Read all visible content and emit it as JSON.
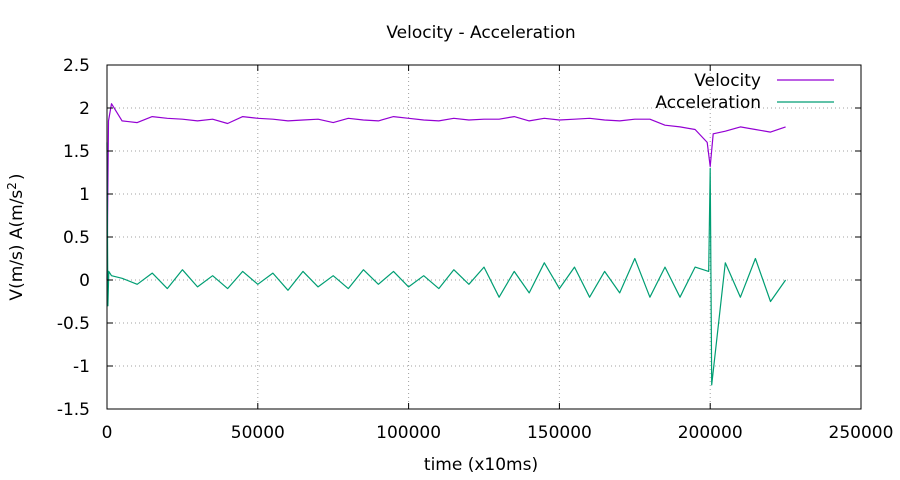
{
  "chart_data": {
    "type": "line",
    "title": "Velocity - Acceleration",
    "xlabel": "time (x10ms)",
    "ylabel_main": "V(m/s) A(m/s",
    "ylabel_sup": "2",
    "ylabel_close": ")",
    "xlim": [
      0,
      250000
    ],
    "ylim": [
      -1.5,
      2.5
    ],
    "x_ticks": [
      0,
      50000,
      100000,
      150000,
      200000,
      250000
    ],
    "x_tick_labels": [
      "0",
      "50000",
      "100000",
      "150000",
      "200000",
      "250000"
    ],
    "y_ticks": [
      -1.5,
      -1,
      -0.5,
      0,
      0.5,
      1,
      1.5,
      2,
      2.5
    ],
    "y_tick_labels": [
      "-1.5",
      "-1",
      "-0.5",
      "0",
      "0.5",
      "1",
      "1.5",
      "2",
      "2.5"
    ],
    "grid": true,
    "legend_position": "top-right",
    "series": [
      {
        "name": "Velocity",
        "color": "#9400d3",
        "x": [
          0,
          500,
          1500,
          5000,
          10000,
          15000,
          20000,
          25000,
          30000,
          35000,
          40000,
          45000,
          50000,
          55000,
          60000,
          65000,
          70000,
          75000,
          80000,
          85000,
          90000,
          95000,
          100000,
          105000,
          110000,
          115000,
          120000,
          125000,
          130000,
          135000,
          140000,
          145000,
          150000,
          155000,
          160000,
          165000,
          170000,
          175000,
          180000,
          185000,
          190000,
          195000,
          199000,
          200000,
          201000,
          205000,
          210000,
          215000,
          220000,
          225000
        ],
        "values": [
          0.0,
          1.85,
          2.05,
          1.85,
          1.83,
          1.9,
          1.88,
          1.87,
          1.85,
          1.87,
          1.82,
          1.9,
          1.88,
          1.87,
          1.85,
          1.86,
          1.87,
          1.83,
          1.88,
          1.86,
          1.85,
          1.9,
          1.88,
          1.86,
          1.85,
          1.88,
          1.86,
          1.87,
          1.87,
          1.9,
          1.85,
          1.88,
          1.86,
          1.87,
          1.88,
          1.86,
          1.85,
          1.87,
          1.87,
          1.8,
          1.78,
          1.75,
          1.6,
          1.32,
          1.7,
          1.73,
          1.78,
          1.75,
          1.72,
          1.78
        ]
      },
      {
        "name": "Acceleration",
        "color": "#009e73",
        "x": [
          0,
          300,
          600,
          1500,
          5000,
          10000,
          15000,
          20000,
          25000,
          30000,
          35000,
          40000,
          45000,
          50000,
          55000,
          60000,
          65000,
          70000,
          75000,
          80000,
          85000,
          90000,
          95000,
          100000,
          105000,
          110000,
          115000,
          120000,
          125000,
          130000,
          135000,
          140000,
          145000,
          150000,
          155000,
          160000,
          165000,
          170000,
          175000,
          180000,
          185000,
          190000,
          195000,
          199500,
          200000,
          200500,
          205000,
          210000,
          215000,
          220000,
          225000
        ],
        "values": [
          1.6,
          -0.3,
          0.1,
          0.05,
          0.02,
          -0.05,
          0.08,
          -0.1,
          0.12,
          -0.08,
          0.05,
          -0.1,
          0.1,
          -0.05,
          0.08,
          -0.12,
          0.1,
          -0.08,
          0.05,
          -0.1,
          0.12,
          -0.05,
          0.1,
          -0.08,
          0.05,
          -0.1,
          0.12,
          -0.05,
          0.15,
          -0.2,
          0.1,
          -0.15,
          0.2,
          -0.1,
          0.15,
          -0.2,
          0.1,
          -0.15,
          0.25,
          -0.2,
          0.15,
          -0.2,
          0.15,
          0.1,
          1.3,
          -1.22,
          0.2,
          -0.2,
          0.25,
          -0.25,
          0.0
        ]
      }
    ]
  }
}
